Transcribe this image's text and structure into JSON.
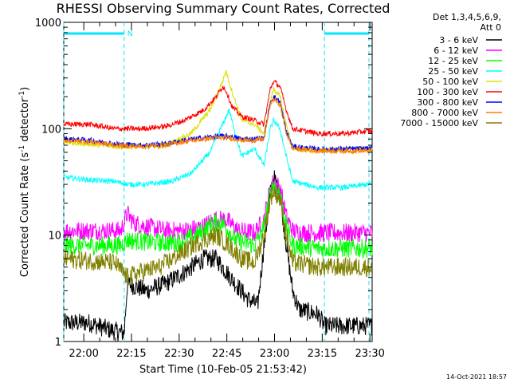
{
  "chart_data": {
    "type": "line",
    "title": "RHESSI Observing Summary Count Rates, Corrected",
    "xlabel": "Start Time (10-Feb-05 21:53:42)",
    "ylabel_main": "Corrected Count Rate (s",
    "ylabel_sup1": "-1",
    "ylabel_mid": " detector",
    "ylabel_sup2": "-1",
    "ylabel_end": ")",
    "y_scale": "log",
    "ylim": [
      1,
      1000
    ],
    "y_ticks": [
      {
        "value": 1,
        "label": "1"
      },
      {
        "value": 10,
        "label": "10"
      },
      {
        "value": 100,
        "label": "100"
      },
      {
        "value": 1000,
        "label": "1000"
      }
    ],
    "x_unit": "minutes since 21:53:42",
    "xlim": [
      0,
      97
    ],
    "x_ticks": [
      {
        "value": 6.3,
        "label": "22:00"
      },
      {
        "value": 21.3,
        "label": "22:15"
      },
      {
        "value": 36.3,
        "label": "22:30"
      },
      {
        "value": 51.3,
        "label": "22:45"
      },
      {
        "value": 66.3,
        "label": "23:00"
      },
      {
        "value": 81.3,
        "label": "23:15"
      },
      {
        "value": 96.3,
        "label": "23:30"
      }
    ],
    "legend_header": [
      "Det 1,3,4,5,6,9,",
      "Att 0"
    ],
    "night_boundaries": [
      0,
      19,
      82,
      96
    ],
    "flag_label": "N",
    "flag_segments": [
      [
        0,
        19
      ],
      [
        82,
        96
      ]
    ],
    "series": [
      {
        "name": "3 - 6 keV",
        "color": "#000000",
        "points": [
          [
            0,
            1.5
          ],
          [
            8,
            1.5
          ],
          [
            14,
            1.3
          ],
          [
            19,
            1.2
          ],
          [
            20,
            3.5
          ],
          [
            26,
            3
          ],
          [
            32,
            3.5
          ],
          [
            38,
            4.5
          ],
          [
            44,
            6
          ],
          [
            48,
            6
          ],
          [
            50,
            5
          ],
          [
            54,
            3.5
          ],
          [
            58,
            2.5
          ],
          [
            61,
            2.2
          ],
          [
            63,
            8
          ],
          [
            65,
            25
          ],
          [
            66,
            35
          ],
          [
            68,
            25
          ],
          [
            70,
            8
          ],
          [
            72,
            3
          ],
          [
            74,
            2
          ],
          [
            80,
            1.8
          ],
          [
            82,
            1.4
          ],
          [
            96,
            1.4
          ]
        ]
      },
      {
        "name": "6 - 12 keV",
        "color": "#ff00ff",
        "points": [
          [
            0,
            11
          ],
          [
            18,
            11
          ],
          [
            20,
            16
          ],
          [
            22,
            13
          ],
          [
            26,
            12
          ],
          [
            32,
            11
          ],
          [
            38,
            11
          ],
          [
            44,
            12
          ],
          [
            47,
            14
          ],
          [
            51,
            14
          ],
          [
            55,
            11
          ],
          [
            60,
            10.5
          ],
          [
            63,
            14
          ],
          [
            65,
            28
          ],
          [
            66,
            32
          ],
          [
            68,
            28
          ],
          [
            70,
            15
          ],
          [
            72,
            11
          ],
          [
            76,
            10.5
          ],
          [
            90,
            10.5
          ],
          [
            96,
            10.5
          ]
        ]
      },
      {
        "name": "12 - 25 keV",
        "color": "#00ff00",
        "points": [
          [
            0,
            8
          ],
          [
            18,
            8
          ],
          [
            20,
            9
          ],
          [
            28,
            8.5
          ],
          [
            36,
            8.5
          ],
          [
            42,
            10
          ],
          [
            47,
            13
          ],
          [
            50,
            13
          ],
          [
            54,
            9
          ],
          [
            60,
            8
          ],
          [
            63,
            12
          ],
          [
            65,
            25
          ],
          [
            66,
            30
          ],
          [
            68,
            25
          ],
          [
            70,
            12
          ],
          [
            72,
            8
          ],
          [
            80,
            7.5
          ],
          [
            96,
            7.5
          ]
        ]
      },
      {
        "name": "25 - 50 keV",
        "color": "#00ffff",
        "points": [
          [
            0,
            35
          ],
          [
            8,
            33
          ],
          [
            16,
            32
          ],
          [
            20,
            30
          ],
          [
            26,
            30
          ],
          [
            34,
            32
          ],
          [
            40,
            38
          ],
          [
            46,
            60
          ],
          [
            50,
            110
          ],
          [
            52,
            150
          ],
          [
            54,
            90
          ],
          [
            56,
            55
          ],
          [
            60,
            65
          ],
          [
            63,
            45
          ],
          [
            65,
            100
          ],
          [
            66,
            120
          ],
          [
            68,
            100
          ],
          [
            70,
            55
          ],
          [
            72,
            32
          ],
          [
            80,
            28
          ],
          [
            88,
            28
          ],
          [
            96,
            30
          ]
        ]
      },
      {
        "name": "50 - 100 keV",
        "color": "#e0e000",
        "points": [
          [
            0,
            75
          ],
          [
            8,
            72
          ],
          [
            16,
            68
          ],
          [
            24,
            68
          ],
          [
            32,
            70
          ],
          [
            40,
            90
          ],
          [
            46,
            150
          ],
          [
            50,
            280
          ],
          [
            51,
            350
          ],
          [
            53,
            220
          ],
          [
            56,
            120
          ],
          [
            60,
            110
          ],
          [
            63,
            90
          ],
          [
            65,
            180
          ],
          [
            66,
            240
          ],
          [
            68,
            200
          ],
          [
            70,
            110
          ],
          [
            72,
            65
          ],
          [
            80,
            62
          ],
          [
            96,
            65
          ]
        ]
      },
      {
        "name": "100 - 300 keV",
        "color": "#ff0000",
        "points": [
          [
            0,
            110
          ],
          [
            8,
            110
          ],
          [
            16,
            100
          ],
          [
            24,
            100
          ],
          [
            32,
            105
          ],
          [
            38,
            120
          ],
          [
            44,
            150
          ],
          [
            48,
            200
          ],
          [
            50,
            250
          ],
          [
            51,
            230
          ],
          [
            53,
            160
          ],
          [
            56,
            130
          ],
          [
            60,
            120
          ],
          [
            63,
            110
          ],
          [
            65,
            240
          ],
          [
            66,
            280
          ],
          [
            68,
            250
          ],
          [
            70,
            150
          ],
          [
            72,
            100
          ],
          [
            80,
            90
          ],
          [
            88,
            90
          ],
          [
            96,
            95
          ]
        ]
      },
      {
        "name": "300 - 800 keV",
        "color": "#0000ff",
        "points": [
          [
            0,
            80
          ],
          [
            8,
            78
          ],
          [
            16,
            72
          ],
          [
            24,
            70
          ],
          [
            32,
            72
          ],
          [
            38,
            78
          ],
          [
            44,
            82
          ],
          [
            48,
            85
          ],
          [
            52,
            85
          ],
          [
            56,
            80
          ],
          [
            60,
            80
          ],
          [
            63,
            82
          ],
          [
            65,
            180
          ],
          [
            66,
            200
          ],
          [
            68,
            180
          ],
          [
            70,
            95
          ],
          [
            72,
            68
          ],
          [
            80,
            64
          ],
          [
            96,
            65
          ]
        ]
      },
      {
        "name": "800 - 7000 keV",
        "color": "#ff8000",
        "points": [
          [
            0,
            78
          ],
          [
            8,
            76
          ],
          [
            16,
            70
          ],
          [
            24,
            68
          ],
          [
            32,
            70
          ],
          [
            38,
            76
          ],
          [
            44,
            80
          ],
          [
            48,
            82
          ],
          [
            52,
            82
          ],
          [
            56,
            78
          ],
          [
            60,
            78
          ],
          [
            63,
            80
          ],
          [
            65,
            170
          ],
          [
            66,
            190
          ],
          [
            68,
            170
          ],
          [
            70,
            90
          ],
          [
            72,
            65
          ],
          [
            80,
            62
          ],
          [
            96,
            62
          ]
        ]
      },
      {
        "name": "7000 - 15000 keV",
        "color": "#808000",
        "points": [
          [
            0,
            6
          ],
          [
            16,
            5.5
          ],
          [
            20,
            4
          ],
          [
            24,
            4.5
          ],
          [
            30,
            5
          ],
          [
            36,
            6.5
          ],
          [
            42,
            8.5
          ],
          [
            48,
            10
          ],
          [
            52,
            8
          ],
          [
            56,
            6
          ],
          [
            60,
            5.5
          ],
          [
            63,
            10
          ],
          [
            65,
            22
          ],
          [
            66,
            26
          ],
          [
            68,
            22
          ],
          [
            70,
            10
          ],
          [
            72,
            5.5
          ],
          [
            80,
            5
          ],
          [
            96,
            5
          ]
        ]
      }
    ],
    "timestamp": "14-Oct-2021 18:57"
  }
}
